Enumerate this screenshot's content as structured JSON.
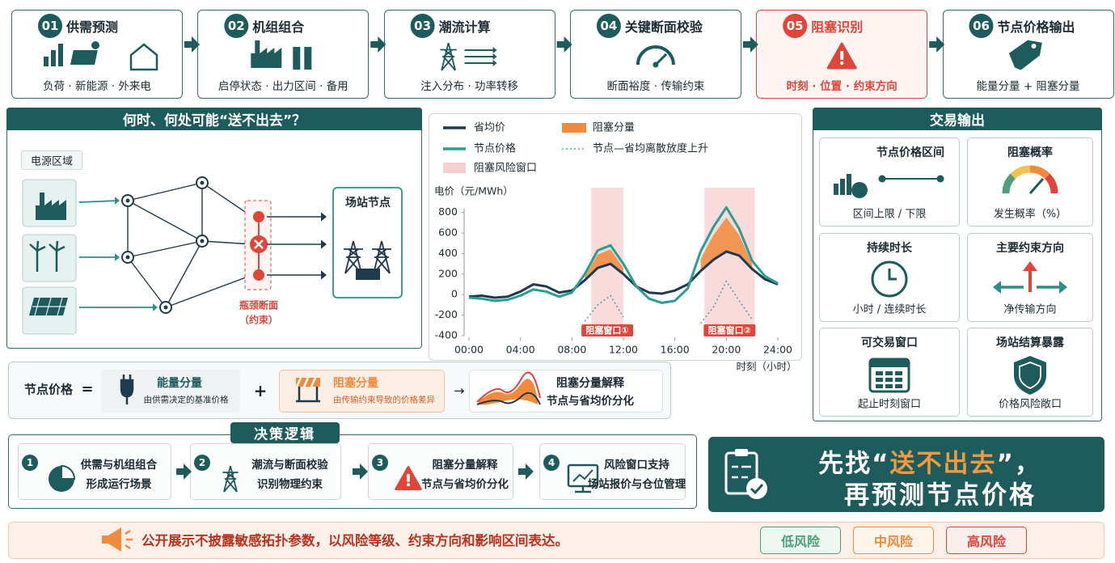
{
  "steps": [
    {
      "number": "01",
      "title": "供需预测",
      "subtitle": "负荷 · 新能源 · 外来电"
    },
    {
      "number": "02",
      "title": "机组组合",
      "subtitle": "启停状态 · 出力区间 · 备用"
    },
    {
      "number": "03",
      "title": "潮流计算",
      "subtitle": "注入分布 · 功率转移"
    },
    {
      "number": "04",
      "title": "关键断面校验",
      "subtitle": "断面裕度 · 传输约束"
    },
    {
      "number": "05",
      "title": "阻塞识别",
      "subtitle": "时刻 · 位置 · 约束方向"
    },
    {
      "number": "06",
      "title": "节点价格输出",
      "subtitle": "能量分量 + 阻塞分量"
    }
  ],
  "zone_panel": {
    "title": "何时、何处可能“送不出去”？",
    "source_label": "电源区域",
    "node_label": "场站节点",
    "bottleneck": "瓶颈断面",
    "constraint": "（约束）"
  },
  "chart_data": {
    "type": "line",
    "y_label": "电价（元/MWh）",
    "x_label": "时刻（小时）",
    "x": [
      0,
      1,
      2,
      3,
      4,
      5,
      6,
      7,
      8,
      9,
      10,
      11,
      12,
      13,
      14,
      15,
      16,
      17,
      18,
      19,
      20,
      21,
      22,
      23,
      24
    ],
    "xlim": [
      0,
      24
    ],
    "xticks": [
      {
        "value": 0,
        "label": "00:00"
      },
      {
        "value": 4,
        "label": "04:00"
      },
      {
        "value": 8,
        "label": "08:00"
      },
      {
        "value": 12,
        "label": "12:00"
      },
      {
        "value": 16,
        "label": "16:00"
      },
      {
        "value": 20,
        "label": "20:00"
      },
      {
        "value": 24,
        "label": "24:00"
      }
    ],
    "ylim": [
      -400,
      900
    ],
    "yticks": [
      -400,
      -200,
      0,
      200,
      400,
      600,
      800
    ],
    "series": [
      {
        "name": "省均价",
        "color": "#1f3a4d",
        "kind": "line",
        "values": [
          -20,
          -10,
          -30,
          -20,
          30,
          100,
          80,
          20,
          40,
          140,
          260,
          300,
          200,
          80,
          20,
          10,
          40,
          100,
          230,
          340,
          420,
          380,
          250,
          150,
          100
        ]
      },
      {
        "name": "阻塞分量",
        "color": "#f08a3c",
        "kind": "band",
        "values": [
          null,
          null,
          null,
          null,
          null,
          null,
          null,
          null,
          null,
          40,
          130,
          140,
          60,
          null,
          null,
          null,
          null,
          null,
          120,
          240,
          330,
          200,
          50,
          null,
          null
        ]
      },
      {
        "name": "节点价格",
        "color": "#2a9d95",
        "kind": "line",
        "values": [
          -30,
          -40,
          -60,
          -50,
          -10,
          50,
          30,
          -20,
          20,
          200,
          430,
          480,
          300,
          80,
          -40,
          -80,
          -60,
          60,
          420,
          660,
          850,
          640,
          330,
          180,
          110
        ]
      },
      {
        "name": "节点—省均离散放度上升",
        "color": "#4f9fb2",
        "kind": "dotted",
        "values": [
          null,
          null,
          null,
          null,
          null,
          null,
          null,
          null,
          null,
          -260,
          -100,
          -10,
          -220,
          null,
          null,
          null,
          null,
          null,
          -280,
          -120,
          130,
          -60,
          -240,
          null,
          null
        ]
      }
    ],
    "window_name": "阻塞风险窗口",
    "window_color": "#f7cfcf",
    "windows": [
      {
        "x": [
          9.5,
          12
        ],
        "label": "阻塞窗口①"
      },
      {
        "x": [
          18.3,
          22.2
        ],
        "label": "阻塞窗口②"
      }
    ]
  },
  "output_panel": {
    "title": "交易输出",
    "cards": [
      {
        "title": "节点价格区间",
        "subtitle": "区间上限 / 下限"
      },
      {
        "title": "阻塞概率",
        "subtitle": "发生概率（%）"
      },
      {
        "title": "持续时长",
        "subtitle": "小时 / 连续时长"
      },
      {
        "title": "主要约束方向",
        "subtitle": "净传输方向"
      },
      {
        "title": "可交易窗口",
        "subtitle": "起止时刻窗口"
      },
      {
        "title": "场站结算暴露",
        "subtitle": "价格风险敞口"
      }
    ]
  },
  "formula": {
    "label": "节点价格",
    "equals": "=",
    "plus": "+",
    "arrow": "→",
    "energy_title": "能量分量",
    "energy_desc": "由供需决定的基准价格",
    "congestion_title": "阻塞分量",
    "congestion_desc": "由传输约束导致的价格差异",
    "explain_title": "阻塞分量解释",
    "explain_desc": "节点与省均价分化"
  },
  "decision": {
    "title": "决策逻辑",
    "steps": [
      {
        "number": "1",
        "line1": "供需与机组组合",
        "line2": "形成运行场景"
      },
      {
        "number": "2",
        "line1": "潮流与断面校验",
        "line2": "识别物理约束"
      },
      {
        "number": "3",
        "line1": "阻塞分量解释",
        "line2": "节点与省均价分化"
      },
      {
        "number": "4",
        "line1": "风险窗口支持",
        "line2": "场站报价与仓位管理"
      }
    ]
  },
  "slogan": {
    "prefix": "先找“",
    "highlight": "送不出去",
    "suffix": "”，",
    "line2": "再预测节点价格"
  },
  "footer": {
    "note": "公开展示不披露敏感拓扑参数，以风险等级、约束方向和影响区间表达。",
    "levels": [
      "低风险",
      "中风险",
      "高风险"
    ]
  }
}
